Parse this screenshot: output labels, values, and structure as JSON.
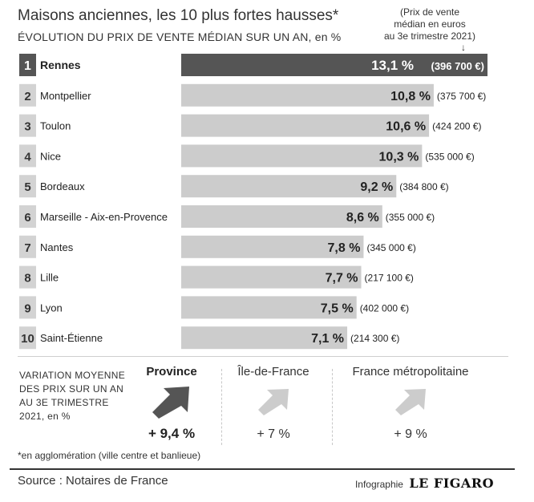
{
  "header": {
    "title": "Maisons anciennes, les 10 plus fortes hausses*",
    "subtitle": "ÉVOLUTION DU PRIX DE VENTE MÉDIAN SUR UN AN, en %",
    "note_line1": "(Prix de vente",
    "note_line2": "médian en euros",
    "note_line3": "au 3e trimestre 2021)",
    "note_arrow": "↓"
  },
  "chart_data": {
    "type": "bar",
    "orientation": "horizontal",
    "categories": [
      "Rennes",
      "Montpellier",
      "Toulon",
      "Nice",
      "Bordeaux",
      "Marseille - Aix-en-Provence",
      "Nantes",
      "Lille",
      "Lyon",
      "Saint-Étienne"
    ],
    "ranks": [
      "1",
      "2",
      "3",
      "4",
      "5",
      "6",
      "7",
      "8",
      "9",
      "10"
    ],
    "values": [
      13.1,
      10.8,
      10.6,
      10.3,
      9.2,
      8.6,
      7.8,
      7.7,
      7.5,
      7.1
    ],
    "value_labels": [
      "13,1 %",
      "10,8 %",
      "10,6 %",
      "10,3 %",
      "9,2 %",
      "8,6 %",
      "7,8 %",
      "7,7 %",
      "7,5 %",
      "7,1 %"
    ],
    "price_labels": [
      "(396 700 €)",
      "(375 700 €)",
      "(424 200 €)",
      "(535 000 €)",
      "(384 800 €)",
      "(355 000 €)",
      "(345 000 €)",
      "(217 100 €)",
      "(402 000 €)",
      "(214 300 €)"
    ],
    "highlight_index": 0,
    "colors": {
      "highlight": "#555555",
      "bar": "#cccccc",
      "rank_box": "#d3d3d3",
      "rank_box_highlight": "#555555"
    }
  },
  "stats": {
    "label": "VARIATION MOYENNE DES PRIX SUR UN AN AU 3E TRIMESTRE 2021, en %",
    "items": [
      {
        "name": "Province",
        "value": "+ 9,4 %",
        "icon": "arrow-up-right-icon",
        "color": "#555555"
      },
      {
        "name": "Île-de-France",
        "value": "+ 7 %",
        "icon": "arrow-up-right-icon",
        "color": "#cccccc"
      },
      {
        "name": "France métropolitaine",
        "value": "+ 9 %",
        "icon": "arrow-up-right-icon",
        "color": "#cccccc"
      }
    ]
  },
  "footnote": "*en agglomération (ville centre et banlieue)",
  "source": "Source : Notaires de France",
  "credit": {
    "prefix": "Infographie",
    "brand": "LE FIGARO"
  }
}
